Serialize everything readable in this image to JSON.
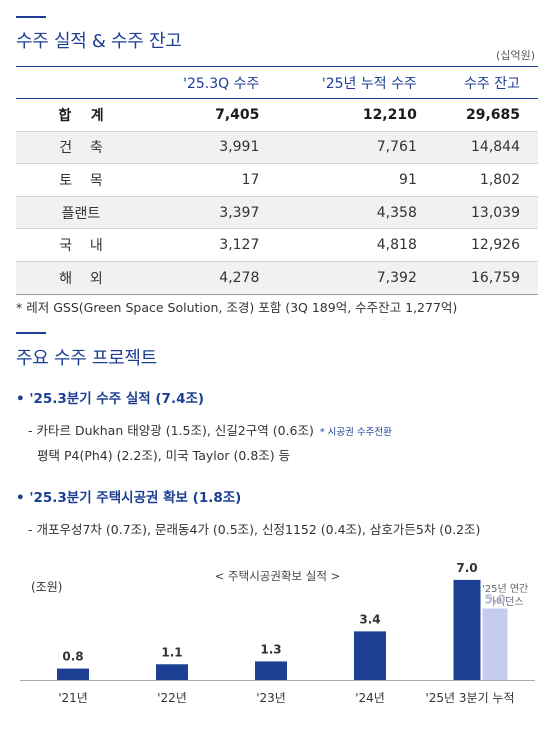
{
  "section1": {
    "title": "수주 실적 & 수주 잔고",
    "unit": "(십억원)",
    "table": {
      "headers": [
        "'25.3Q 수주",
        "'25년 누적 수주",
        "수주 잔고"
      ],
      "rows": [
        {
          "label": "합    계",
          "values": [
            "7,405",
            "12,210",
            "29,685"
          ]
        },
        {
          "label": "건    축",
          "values": [
            "3,991",
            "7,761",
            "14,844"
          ]
        },
        {
          "label": "토    목",
          "values": [
            "17",
            "91",
            "1,802"
          ]
        },
        {
          "label": "플랜트",
          "values": [
            "3,397",
            "4,358",
            "13,039"
          ]
        },
        {
          "label": "국    내",
          "values": [
            "3,127",
            "4,818",
            "12,926"
          ]
        },
        {
          "label": "해    외",
          "values": [
            "4,278",
            "7,392",
            "16,759"
          ]
        }
      ]
    },
    "footnote": "* 레저 GSS(Green Space Solution, 조경) 포함 (3Q 189억, 수주잔고 1,277억)"
  },
  "section2": {
    "title": "주요 수주 프로젝트",
    "bullet1": {
      "heading": "• '25.3분기 수주 실적 (7.4조)",
      "line1": "- 카타르 Dukhan 태양광 (1.5조), 신길2구역 (0.6조)",
      "line1_note": "* 시공권 수주전환",
      "line2": "평택 P4(Ph4) (2.2조), 미국 Taylor (0.8조) 등"
    },
    "bullet2": {
      "heading": "• '25.3분기 주택시공권 확보 (1.8조)",
      "line1": "- 개포우성7차 (0.7조), 문래동4가 (0.5조), 신정1152 (0.4조), 삼호가든5차 (0.2조)"
    }
  },
  "chart_data": {
    "type": "bar",
    "title": "< 주택시공권확보 실적 >",
    "ylabel": "(조원)",
    "categories": [
      "'21년",
      "'22년",
      "'23년",
      "'24년",
      "'25년 3분기 누적"
    ],
    "series": [
      {
        "values": [
          0.8,
          1.1,
          1.3,
          3.4,
          7.0
        ],
        "color": "#1c3f94"
      },
      {
        "name": "'25년 연간 가이던스",
        "values": [
          null,
          null,
          null,
          null,
          5.0
        ],
        "color": "#c5ccf0"
      }
    ],
    "data_labels": [
      "0.8",
      "1.1",
      "1.3",
      "3.4",
      "7.0",
      "5.0"
    ],
    "guidance_label": "'25년 연간\n가이던스",
    "ylim": [
      0,
      8
    ],
    "grid": false,
    "legend": "annotation"
  },
  "colors": {
    "accent": "#1c3f94",
    "guidance": "#c5ccf0",
    "shade": "#f1f1f1"
  }
}
